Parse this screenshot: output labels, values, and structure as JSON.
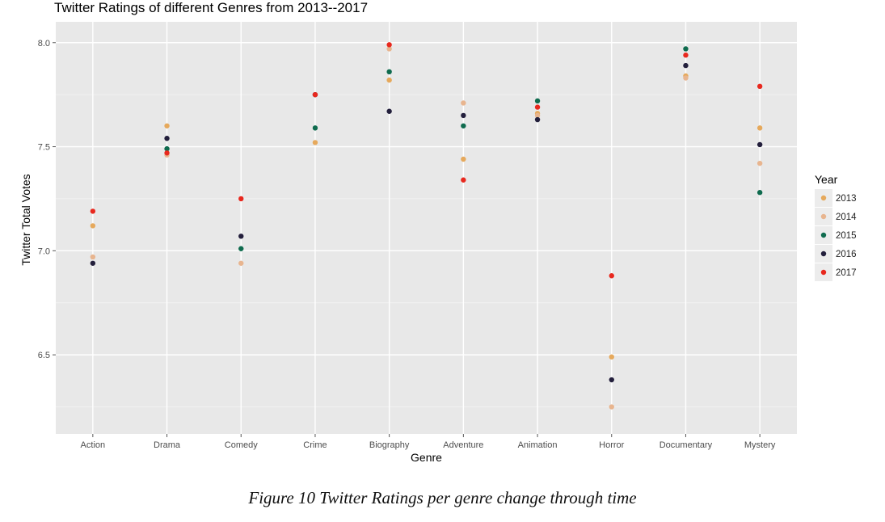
{
  "caption": "Figure 10 Twitter Ratings per genre change through time",
  "chart_data": {
    "type": "scatter",
    "title": "Twitter Ratings of different Genres from 2013--2017",
    "xlabel": "Genre",
    "ylabel": "Twitter Total Votes",
    "categories": [
      "Action",
      "Drama",
      "Comedy",
      "Crime",
      "Biography",
      "Adventure",
      "Animation",
      "Horror",
      "Documentary",
      "Mystery"
    ],
    "ylim": [
      6.12,
      8.1
    ],
    "yticks": [
      6.5,
      7.0,
      7.5,
      8.0
    ],
    "ytick_labels": [
      "6.5",
      "7.0",
      "7.5",
      "8.0"
    ],
    "grid": true,
    "legend": {
      "title": "Year",
      "position": "right"
    },
    "series": [
      {
        "name": "2013",
        "color": "#e6a95c",
        "values": [
          7.12,
          7.6,
          null,
          7.52,
          7.82,
          7.44,
          7.66,
          6.49,
          7.84,
          7.59
        ]
      },
      {
        "name": "2014",
        "color": "#e8b58f",
        "values": [
          6.97,
          7.46,
          6.94,
          null,
          7.97,
          7.71,
          7.65,
          6.25,
          7.83,
          7.42
        ]
      },
      {
        "name": "2015",
        "color": "#0f6b4e",
        "values": [
          null,
          7.49,
          7.01,
          7.59,
          7.86,
          7.6,
          7.72,
          null,
          7.97,
          7.28
        ]
      },
      {
        "name": "2016",
        "color": "#231f3c",
        "values": [
          6.94,
          7.54,
          7.07,
          7.75,
          7.67,
          7.65,
          7.63,
          6.38,
          7.89,
          7.51
        ]
      },
      {
        "name": "2017",
        "color": "#e8281e",
        "values": [
          7.19,
          7.47,
          7.25,
          7.75,
          7.99,
          7.34,
          7.69,
          6.88,
          7.94,
          7.79
        ]
      }
    ]
  }
}
